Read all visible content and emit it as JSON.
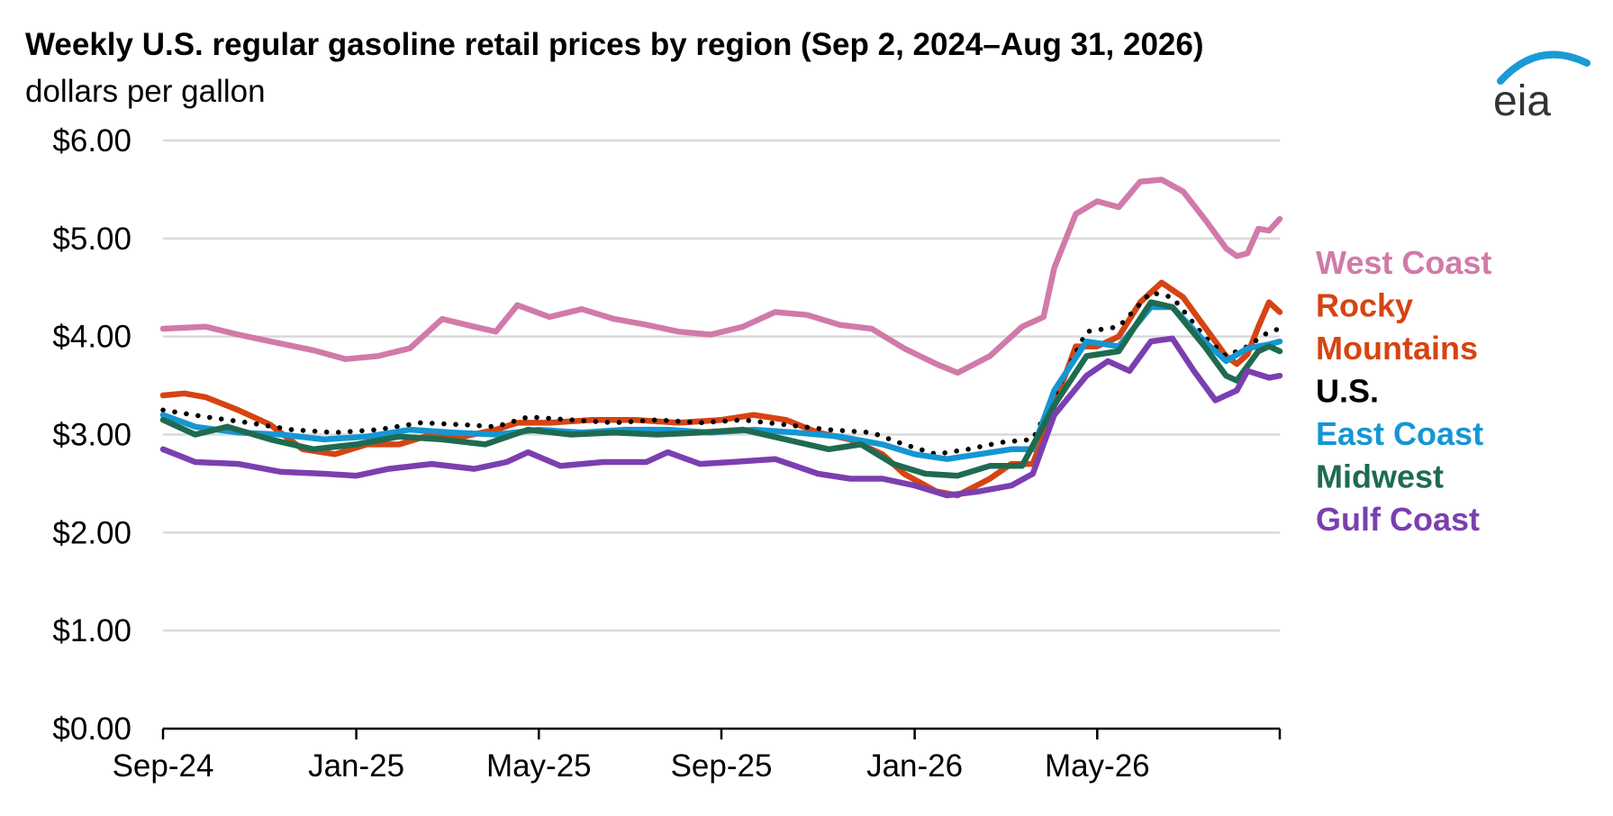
{
  "title": "Weekly U.S. regular gasoline retail prices by region (Sep 2, 2024–Aug 31, 2026)",
  "subtitle": "dollars per gallon",
  "logo_text": "eia",
  "colors": {
    "gridline": "#d9d9d9",
    "axis": "#000000",
    "logo_text": "#333333",
    "logo_arc": "#1a9ad6"
  },
  "chart_data": {
    "type": "line",
    "title": "Weekly U.S. regular gasoline retail prices by region (Sep 2, 2024–Aug 31, 2026)",
    "ylabel": "dollars per gallon",
    "xlabel": "",
    "ylim": [
      0,
      6
    ],
    "yticks": [
      0,
      1,
      2,
      3,
      4,
      5,
      6
    ],
    "ytick_labels": [
      "$0.00",
      "$1.00",
      "$2.00",
      "$3.00",
      "$4.00",
      "$5.00",
      "$6.00"
    ],
    "xlim": [
      "2024-09-02",
      "2026-08-31"
    ],
    "xticks": [
      "2024-09-02",
      "2025-01-06",
      "2025-05-05",
      "2025-09-01",
      "2026-01-05",
      "2026-05-04"
    ],
    "xtick_labels": [
      "Sep-24",
      "Jan-25",
      "May-25",
      "Sep-25",
      "Jan-26",
      "May-26"
    ],
    "grid": true,
    "legend": "right, labels in series colors",
    "series": [
      {
        "name": "West Coast",
        "color": "#d17aa9",
        "style": "solid",
        "points": [
          [
            "2024-09-02",
            4.08
          ],
          [
            "2024-09-30",
            4.1
          ],
          [
            "2024-10-21",
            4.02
          ],
          [
            "2024-11-11",
            3.95
          ],
          [
            "2024-12-09",
            3.86
          ],
          [
            "2024-12-30",
            3.77
          ],
          [
            "2025-01-20",
            3.8
          ],
          [
            "2025-02-10",
            3.88
          ],
          [
            "2025-03-03",
            4.18
          ],
          [
            "2025-03-24",
            4.1
          ],
          [
            "2025-04-07",
            4.05
          ],
          [
            "2025-04-21",
            4.32
          ],
          [
            "2025-05-12",
            4.2
          ],
          [
            "2025-06-02",
            4.28
          ],
          [
            "2025-06-23",
            4.18
          ],
          [
            "2025-07-14",
            4.12
          ],
          [
            "2025-08-04",
            4.05
          ],
          [
            "2025-08-25",
            4.02
          ],
          [
            "2025-09-15",
            4.1
          ],
          [
            "2025-10-06",
            4.25
          ],
          [
            "2025-10-27",
            4.22
          ],
          [
            "2025-11-17",
            4.12
          ],
          [
            "2025-12-08",
            4.08
          ],
          [
            "2025-12-29",
            3.88
          ],
          [
            "2026-01-19",
            3.72
          ],
          [
            "2026-02-02",
            3.63
          ],
          [
            "2026-02-23",
            3.8
          ],
          [
            "2026-03-16",
            4.1
          ],
          [
            "2026-03-30",
            4.2
          ],
          [
            "2026-04-06",
            4.7
          ],
          [
            "2026-04-20",
            5.25
          ],
          [
            "2026-05-04",
            5.38
          ],
          [
            "2026-05-18",
            5.32
          ],
          [
            "2026-06-01",
            5.58
          ],
          [
            "2026-06-15",
            5.6
          ],
          [
            "2026-06-29",
            5.48
          ],
          [
            "2026-07-13",
            5.2
          ],
          [
            "2026-07-27",
            4.9
          ],
          [
            "2026-08-03",
            4.82
          ],
          [
            "2026-08-10",
            4.85
          ],
          [
            "2026-08-17",
            5.1
          ],
          [
            "2026-08-24",
            5.08
          ],
          [
            "2026-08-31",
            5.2
          ]
        ]
      },
      {
        "name": "Rocky Mountains",
        "color": "#d64412",
        "style": "solid",
        "points": [
          [
            "2024-09-02",
            3.4
          ],
          [
            "2024-09-16",
            3.42
          ],
          [
            "2024-09-30",
            3.38
          ],
          [
            "2024-10-21",
            3.25
          ],
          [
            "2024-11-11",
            3.1
          ],
          [
            "2024-12-02",
            2.85
          ],
          [
            "2024-12-23",
            2.8
          ],
          [
            "2025-01-13",
            2.9
          ],
          [
            "2025-02-03",
            2.9
          ],
          [
            "2025-02-24",
            3.0
          ],
          [
            "2025-03-17",
            2.98
          ],
          [
            "2025-04-07",
            3.05
          ],
          [
            "2025-04-21",
            3.12
          ],
          [
            "2025-05-12",
            3.12
          ],
          [
            "2025-06-09",
            3.15
          ],
          [
            "2025-07-07",
            3.15
          ],
          [
            "2025-08-04",
            3.12
          ],
          [
            "2025-09-01",
            3.15
          ],
          [
            "2025-09-22",
            3.2
          ],
          [
            "2025-10-13",
            3.15
          ],
          [
            "2025-11-03",
            3.02
          ],
          [
            "2025-11-24",
            2.95
          ],
          [
            "2025-12-15",
            2.8
          ],
          [
            "2025-12-29",
            2.6
          ],
          [
            "2026-01-19",
            2.42
          ],
          [
            "2026-02-02",
            2.38
          ],
          [
            "2026-02-23",
            2.55
          ],
          [
            "2026-03-09",
            2.7
          ],
          [
            "2026-03-23",
            2.7
          ],
          [
            "2026-04-06",
            3.3
          ],
          [
            "2026-04-20",
            3.9
          ],
          [
            "2026-05-04",
            3.9
          ],
          [
            "2026-05-18",
            4.0
          ],
          [
            "2026-06-01",
            4.35
          ],
          [
            "2026-06-15",
            4.55
          ],
          [
            "2026-06-29",
            4.4
          ],
          [
            "2026-07-13",
            4.1
          ],
          [
            "2026-07-27",
            3.8
          ],
          [
            "2026-08-03",
            3.72
          ],
          [
            "2026-08-10",
            3.82
          ],
          [
            "2026-08-17",
            4.1
          ],
          [
            "2026-08-24",
            4.35
          ],
          [
            "2026-08-31",
            4.25
          ]
        ]
      },
      {
        "name": "U.S.",
        "color": "#000000",
        "style": "dotted",
        "points": [
          [
            "2024-09-02",
            3.25
          ],
          [
            "2024-09-30",
            3.18
          ],
          [
            "2024-10-28",
            3.12
          ],
          [
            "2024-11-25",
            3.05
          ],
          [
            "2024-12-23",
            3.02
          ],
          [
            "2025-01-20",
            3.05
          ],
          [
            "2025-02-17",
            3.12
          ],
          [
            "2025-03-17",
            3.1
          ],
          [
            "2025-04-07",
            3.08
          ],
          [
            "2025-04-28",
            3.18
          ],
          [
            "2025-05-26",
            3.15
          ],
          [
            "2025-06-23",
            3.12
          ],
          [
            "2025-07-21",
            3.15
          ],
          [
            "2025-08-18",
            3.12
          ],
          [
            "2025-09-15",
            3.15
          ],
          [
            "2025-10-13",
            3.1
          ],
          [
            "2025-11-10",
            3.05
          ],
          [
            "2025-12-08",
            3.02
          ],
          [
            "2025-12-29",
            2.9
          ],
          [
            "2026-01-19",
            2.8
          ],
          [
            "2026-02-09",
            2.85
          ],
          [
            "2026-03-02",
            2.92
          ],
          [
            "2026-03-23",
            2.95
          ],
          [
            "2026-04-06",
            3.4
          ],
          [
            "2026-04-27",
            4.05
          ],
          [
            "2026-05-18",
            4.1
          ],
          [
            "2026-06-08",
            4.45
          ],
          [
            "2026-06-22",
            4.4
          ],
          [
            "2026-07-13",
            4.0
          ],
          [
            "2026-07-27",
            3.8
          ],
          [
            "2026-08-10",
            3.9
          ],
          [
            "2026-08-24",
            4.05
          ],
          [
            "2026-08-31",
            4.08
          ]
        ]
      },
      {
        "name": "East Coast",
        "color": "#1596d3",
        "style": "solid",
        "points": [
          [
            "2024-09-02",
            3.2
          ],
          [
            "2024-09-23",
            3.08
          ],
          [
            "2024-10-21",
            3.02
          ],
          [
            "2024-11-18",
            3.0
          ],
          [
            "2024-12-16",
            2.95
          ],
          [
            "2025-01-13",
            2.98
          ],
          [
            "2025-02-10",
            3.05
          ],
          [
            "2025-03-10",
            3.02
          ],
          [
            "2025-04-07",
            3.0
          ],
          [
            "2025-05-05",
            3.05
          ],
          [
            "2025-06-02",
            3.02
          ],
          [
            "2025-06-30",
            3.05
          ],
          [
            "2025-07-28",
            3.05
          ],
          [
            "2025-08-25",
            3.02
          ],
          [
            "2025-09-22",
            3.05
          ],
          [
            "2025-10-20",
            3.02
          ],
          [
            "2025-11-17",
            2.98
          ],
          [
            "2025-12-15",
            2.9
          ],
          [
            "2026-01-05",
            2.8
          ],
          [
            "2026-01-26",
            2.75
          ],
          [
            "2026-02-16",
            2.8
          ],
          [
            "2026-03-09",
            2.85
          ],
          [
            "2026-03-23",
            2.85
          ],
          [
            "2026-04-06",
            3.45
          ],
          [
            "2026-04-27",
            3.95
          ],
          [
            "2026-05-18",
            3.9
          ],
          [
            "2026-06-08",
            4.3
          ],
          [
            "2026-06-22",
            4.3
          ],
          [
            "2026-07-13",
            3.95
          ],
          [
            "2026-07-27",
            3.75
          ],
          [
            "2026-08-10",
            3.88
          ],
          [
            "2026-08-24",
            3.92
          ],
          [
            "2026-08-31",
            3.95
          ]
        ]
      },
      {
        "name": "Midwest",
        "color": "#1e6b50",
        "style": "solid",
        "points": [
          [
            "2024-09-02",
            3.15
          ],
          [
            "2024-09-23",
            3.0
          ],
          [
            "2024-10-14",
            3.08
          ],
          [
            "2024-11-11",
            2.95
          ],
          [
            "2024-12-09",
            2.85
          ],
          [
            "2025-01-06",
            2.9
          ],
          [
            "2025-02-03",
            2.98
          ],
          [
            "2025-03-03",
            2.95
          ],
          [
            "2025-03-31",
            2.9
          ],
          [
            "2025-04-28",
            3.05
          ],
          [
            "2025-05-26",
            3.0
          ],
          [
            "2025-06-23",
            3.02
          ],
          [
            "2025-07-21",
            3.0
          ],
          [
            "2025-08-18",
            3.02
          ],
          [
            "2025-09-15",
            3.05
          ],
          [
            "2025-10-13",
            2.95
          ],
          [
            "2025-11-10",
            2.85
          ],
          [
            "2025-12-01",
            2.9
          ],
          [
            "2025-12-22",
            2.7
          ],
          [
            "2026-01-12",
            2.6
          ],
          [
            "2026-02-02",
            2.58
          ],
          [
            "2026-02-23",
            2.68
          ],
          [
            "2026-03-16",
            2.68
          ],
          [
            "2026-04-06",
            3.3
          ],
          [
            "2026-04-27",
            3.8
          ],
          [
            "2026-05-18",
            3.85
          ],
          [
            "2026-06-08",
            4.35
          ],
          [
            "2026-06-22",
            4.3
          ],
          [
            "2026-07-13",
            3.9
          ],
          [
            "2026-07-27",
            3.6
          ],
          [
            "2026-08-03",
            3.55
          ],
          [
            "2026-08-17",
            3.85
          ],
          [
            "2026-08-24",
            3.9
          ],
          [
            "2026-08-31",
            3.85
          ]
        ]
      },
      {
        "name": "Gulf Coast",
        "color": "#7b3fb0",
        "style": "solid",
        "points": [
          [
            "2024-09-02",
            2.85
          ],
          [
            "2024-09-23",
            2.72
          ],
          [
            "2024-10-21",
            2.7
          ],
          [
            "2024-11-18",
            2.62
          ],
          [
            "2024-12-16",
            2.6
          ],
          [
            "2025-01-06",
            2.58
          ],
          [
            "2025-01-27",
            2.65
          ],
          [
            "2025-02-24",
            2.7
          ],
          [
            "2025-03-24",
            2.65
          ],
          [
            "2025-04-14",
            2.72
          ],
          [
            "2025-04-28",
            2.82
          ],
          [
            "2025-05-19",
            2.68
          ],
          [
            "2025-06-16",
            2.72
          ],
          [
            "2025-07-14",
            2.72
          ],
          [
            "2025-07-28",
            2.82
          ],
          [
            "2025-08-18",
            2.7
          ],
          [
            "2025-09-08",
            2.72
          ],
          [
            "2025-10-06",
            2.75
          ],
          [
            "2025-11-03",
            2.6
          ],
          [
            "2025-11-24",
            2.55
          ],
          [
            "2025-12-15",
            2.55
          ],
          [
            "2026-01-05",
            2.48
          ],
          [
            "2026-01-26",
            2.38
          ],
          [
            "2026-02-16",
            2.42
          ],
          [
            "2026-03-09",
            2.48
          ],
          [
            "2026-03-23",
            2.6
          ],
          [
            "2026-04-06",
            3.2
          ],
          [
            "2026-04-27",
            3.6
          ],
          [
            "2026-05-11",
            3.75
          ],
          [
            "2026-05-25",
            3.65
          ],
          [
            "2026-06-08",
            3.95
          ],
          [
            "2026-06-22",
            3.98
          ],
          [
            "2026-07-06",
            3.65
          ],
          [
            "2026-07-20",
            3.35
          ],
          [
            "2026-08-03",
            3.45
          ],
          [
            "2026-08-10",
            3.65
          ],
          [
            "2026-08-24",
            3.58
          ],
          [
            "2026-08-31",
            3.6
          ]
        ]
      }
    ],
    "legend_entries": [
      {
        "lines": [
          "West Coast"
        ],
        "color": "#d17aa9"
      },
      {
        "lines": [
          "Rocky",
          "Mountains"
        ],
        "color": "#d64412"
      },
      {
        "lines": [
          "U.S."
        ],
        "color": "#000000"
      },
      {
        "lines": [
          "East Coast"
        ],
        "color": "#1596d3"
      },
      {
        "lines": [
          "Midwest"
        ],
        "color": "#1e6b50"
      },
      {
        "lines": [
          "Gulf Coast"
        ],
        "color": "#7b3fb0"
      }
    ]
  }
}
